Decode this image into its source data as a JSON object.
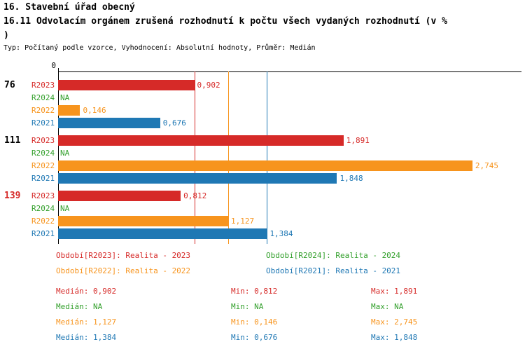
{
  "page": {
    "title": "16. Stavební úřad obecný",
    "subtitle": "16.11 Odvolacím orgánem zrušená rozhodnutí k počtu všech vydaných rozhodnutí (v % )",
    "meta": "Typ: Počítaný podle vzorce, Vyhodnocení: Absolutní hodnoty, Průměr: Medián"
  },
  "colors": {
    "R2023": "#d62a28",
    "R2024": "#33a02c",
    "R2022": "#f7941d",
    "R2021": "#1f78b4",
    "axis": "#000000",
    "highlighted_group_label": "#d62a28",
    "group_label": "#000000"
  },
  "chart_data": {
    "type": "bar",
    "orientation": "horizontal",
    "title": "16.11 Odvolacím orgánem zrušená rozhodnutí k počtu všech vydaných rozhodnutí (v %)",
    "xlabel": "",
    "ylabel": "",
    "x_axis": {
      "origin_label": "0",
      "xlim": [
        0,
        3.07
      ],
      "gridlines": false
    },
    "series_order": [
      "R2023",
      "R2024",
      "R2022",
      "R2021"
    ],
    "groups": [
      {
        "label": "76",
        "highlighted": false,
        "bars": [
          {
            "series": "R2023",
            "value": 0.902,
            "label": "0,902"
          },
          {
            "series": "R2024",
            "value": null,
            "label": "NA"
          },
          {
            "series": "R2022",
            "value": 0.146,
            "label": "0,146"
          },
          {
            "series": "R2021",
            "value": 0.676,
            "label": "0,676"
          }
        ]
      },
      {
        "label": "111",
        "highlighted": false,
        "bars": [
          {
            "series": "R2023",
            "value": 1.891,
            "label": "1,891"
          },
          {
            "series": "R2024",
            "value": null,
            "label": "NA"
          },
          {
            "series": "R2022",
            "value": 2.745,
            "label": "2,745"
          },
          {
            "series": "R2021",
            "value": 1.848,
            "label": "1,848"
          }
        ]
      },
      {
        "label": "139",
        "highlighted": true,
        "bars": [
          {
            "series": "R2023",
            "value": 0.812,
            "label": "0,812"
          },
          {
            "series": "R2024",
            "value": null,
            "label": "NA"
          },
          {
            "series": "R2022",
            "value": 1.127,
            "label": "1,127"
          },
          {
            "series": "R2021",
            "value": 1.384,
            "label": "1,384"
          }
        ]
      }
    ],
    "median_lines": [
      {
        "series": "R2023",
        "value": 0.902
      },
      {
        "series": "R2022",
        "value": 1.127
      },
      {
        "series": "R2021",
        "value": 1.384
      }
    ]
  },
  "legend": [
    {
      "series": "R2023",
      "label": "Období[R2023]: Realita - 2023"
    },
    {
      "series": "R2024",
      "label": "Období[R2024]: Realita - 2024"
    },
    {
      "series": "R2022",
      "label": "Období[R2022]: Realita - 2022"
    },
    {
      "series": "R2021",
      "label": "Období[R2021]: Realita - 2021"
    }
  ],
  "stats": [
    {
      "series": "R2023",
      "median": "Medián: 0,902",
      "min": "Min: 0,812",
      "max": "Max: 1,891"
    },
    {
      "series": "R2024",
      "median": "Medián: NA",
      "min": "Min: NA",
      "max": "Max: NA"
    },
    {
      "series": "R2022",
      "median": "Medián: 1,127",
      "min": "Min: 0,146",
      "max": "Max: 2,745"
    },
    {
      "series": "R2021",
      "median": "Medián: 1,384",
      "min": "Min: 0,676",
      "max": "Max: 1,848"
    }
  ]
}
